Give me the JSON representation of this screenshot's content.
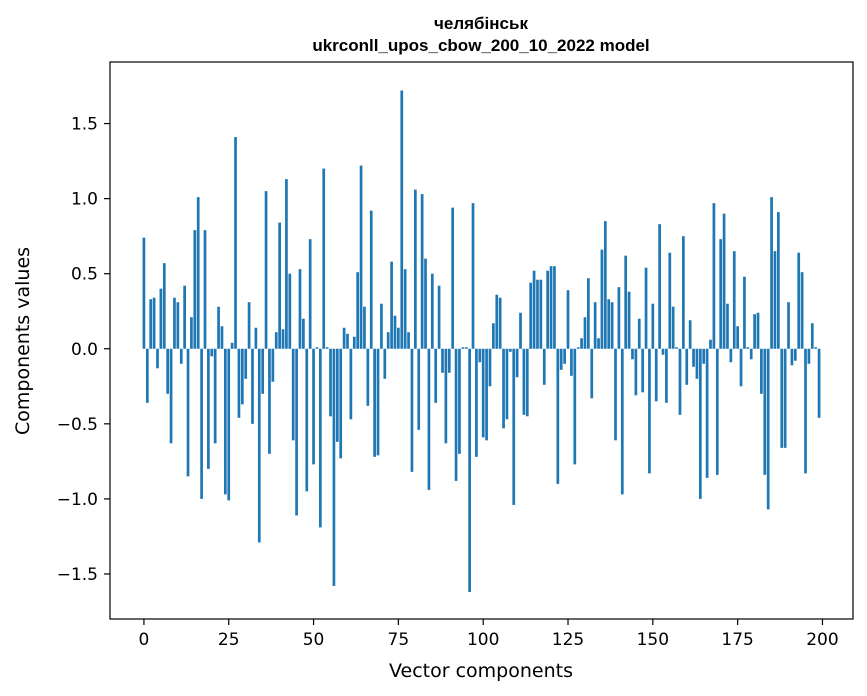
{
  "chart_data": {
    "type": "bar",
    "title": "челябінськ",
    "subtitle": "ukrconll_upos_cbow_200_10_2022 model",
    "xlabel": "Vector components",
    "ylabel": "Components values",
    "xlim": [
      -10,
      209
    ],
    "ylim": [
      -1.8,
      1.91
    ],
    "grid": false,
    "bar_color": "#1f77b4",
    "xticks": [
      0,
      25,
      50,
      75,
      100,
      125,
      150,
      175,
      200
    ],
    "xtick_labels": [
      "0",
      "25",
      "50",
      "75",
      "100",
      "125",
      "150",
      "175",
      "200"
    ],
    "yticks": [
      -1.5,
      -1.0,
      -0.5,
      0.0,
      0.5,
      1.0,
      1.5
    ],
    "ytick_labels": [
      "−1.5",
      "−1.0",
      "−0.5",
      "0.0",
      "0.5",
      "1.0",
      "1.5"
    ],
    "x": [
      0,
      1,
      2,
      3,
      4,
      5,
      6,
      7,
      8,
      9,
      10,
      11,
      12,
      13,
      14,
      15,
      16,
      17,
      18,
      19,
      20,
      21,
      22,
      23,
      24,
      25,
      26,
      27,
      28,
      29,
      30,
      31,
      32,
      33,
      34,
      35,
      36,
      37,
      38,
      39,
      40,
      41,
      42,
      43,
      44,
      45,
      46,
      47,
      48,
      49,
      50,
      51,
      52,
      53,
      54,
      55,
      56,
      57,
      58,
      59,
      60,
      61,
      62,
      63,
      64,
      65,
      66,
      67,
      68,
      69,
      70,
      71,
      72,
      73,
      74,
      75,
      76,
      77,
      78,
      79,
      80,
      81,
      82,
      83,
      84,
      85,
      86,
      87,
      88,
      89,
      90,
      91,
      92,
      93,
      94,
      95,
      96,
      97,
      98,
      99,
      100,
      101,
      102,
      103,
      104,
      105,
      106,
      107,
      108,
      109,
      110,
      111,
      112,
      113,
      114,
      115,
      116,
      117,
      118,
      119,
      120,
      121,
      122,
      123,
      124,
      125,
      126,
      127,
      128,
      129,
      130,
      131,
      132,
      133,
      134,
      135,
      136,
      137,
      138,
      139,
      140,
      141,
      142,
      143,
      144,
      145,
      146,
      147,
      148,
      149,
      150,
      151,
      152,
      153,
      154,
      155,
      156,
      157,
      158,
      159,
      160,
      161,
      162,
      163,
      164,
      165,
      166,
      167,
      168,
      169,
      170,
      171,
      172,
      173,
      174,
      175,
      176,
      177,
      178,
      179,
      180,
      181,
      182,
      183,
      184,
      185,
      186,
      187,
      188,
      189,
      190,
      191,
      192,
      193,
      194,
      195,
      196,
      197,
      198,
      199
    ],
    "values": [
      0.74,
      -0.36,
      0.33,
      0.34,
      -0.13,
      0.4,
      0.57,
      -0.3,
      -0.63,
      0.34,
      0.31,
      -0.1,
      0.42,
      -0.85,
      0.21,
      0.79,
      1.01,
      -1.0,
      0.79,
      -0.8,
      -0.05,
      -0.63,
      0.28,
      0.15,
      -0.97,
      -1.01,
      0.04,
      1.41,
      -0.46,
      -0.37,
      -0.2,
      0.31,
      -0.5,
      0.14,
      -1.29,
      -0.3,
      1.05,
      -0.7,
      -0.22,
      0.11,
      0.84,
      0.13,
      1.13,
      0.5,
      -0.61,
      -1.11,
      0.53,
      0.2,
      -0.95,
      0.73,
      -0.77,
      0.01,
      -1.19,
      1.2,
      0.01,
      -0.45,
      -1.58,
      -0.62,
      -0.73,
      0.14,
      0.1,
      -0.47,
      0.08,
      0.51,
      1.22,
      0.28,
      -0.38,
      0.92,
      -0.72,
      -0.71,
      0.3,
      -0.2,
      0.11,
      0.58,
      0.22,
      0.14,
      1.72,
      0.53,
      0.11,
      -0.82,
      1.06,
      -0.54,
      1.03,
      0.6,
      -0.94,
      0.5,
      -0.36,
      0.42,
      -0.16,
      -0.63,
      -0.16,
      0.94,
      -0.88,
      -0.7,
      0.01,
      0.01,
      -1.62,
      0.97,
      -0.72,
      -0.09,
      -0.59,
      -0.61,
      -0.25,
      0.17,
      0.36,
      0.34,
      -0.53,
      -0.47,
      -0.02,
      -1.04,
      -0.19,
      0.24,
      -0.44,
      -0.45,
      0.44,
      0.52,
      0.46,
      0.46,
      -0.24,
      0.52,
      0.55,
      0.55,
      -0.9,
      -0.14,
      -0.1,
      0.39,
      -0.18,
      -0.77,
      0.01,
      0.07,
      0.21,
      0.47,
      -0.33,
      0.31,
      0.07,
      0.66,
      0.85,
      0.33,
      0.31,
      -0.61,
      0.41,
      -0.97,
      0.62,
      0.38,
      -0.07,
      -0.31,
      0.2,
      -0.29,
      0.54,
      -0.83,
      0.3,
      -0.35,
      0.83,
      -0.04,
      -0.36,
      0.64,
      0.28,
      0.01,
      -0.44,
      0.75,
      -0.24,
      0.19,
      -0.12,
      -0.2,
      -1.0,
      -0.1,
      -0.86,
      0.06,
      0.97,
      -0.84,
      0.73,
      0.9,
      0.3,
      -0.09,
      0.65,
      0.15,
      -0.25,
      0.48,
      0.01,
      -0.07,
      0.23,
      0.24,
      -0.3,
      -0.84,
      -1.07,
      1.01,
      0.65,
      0.91,
      -0.66,
      -0.66,
      0.31,
      -0.11,
      -0.08,
      0.64,
      0.51,
      -0.83,
      -0.1,
      0.17,
      0.01,
      -0.46
    ]
  }
}
